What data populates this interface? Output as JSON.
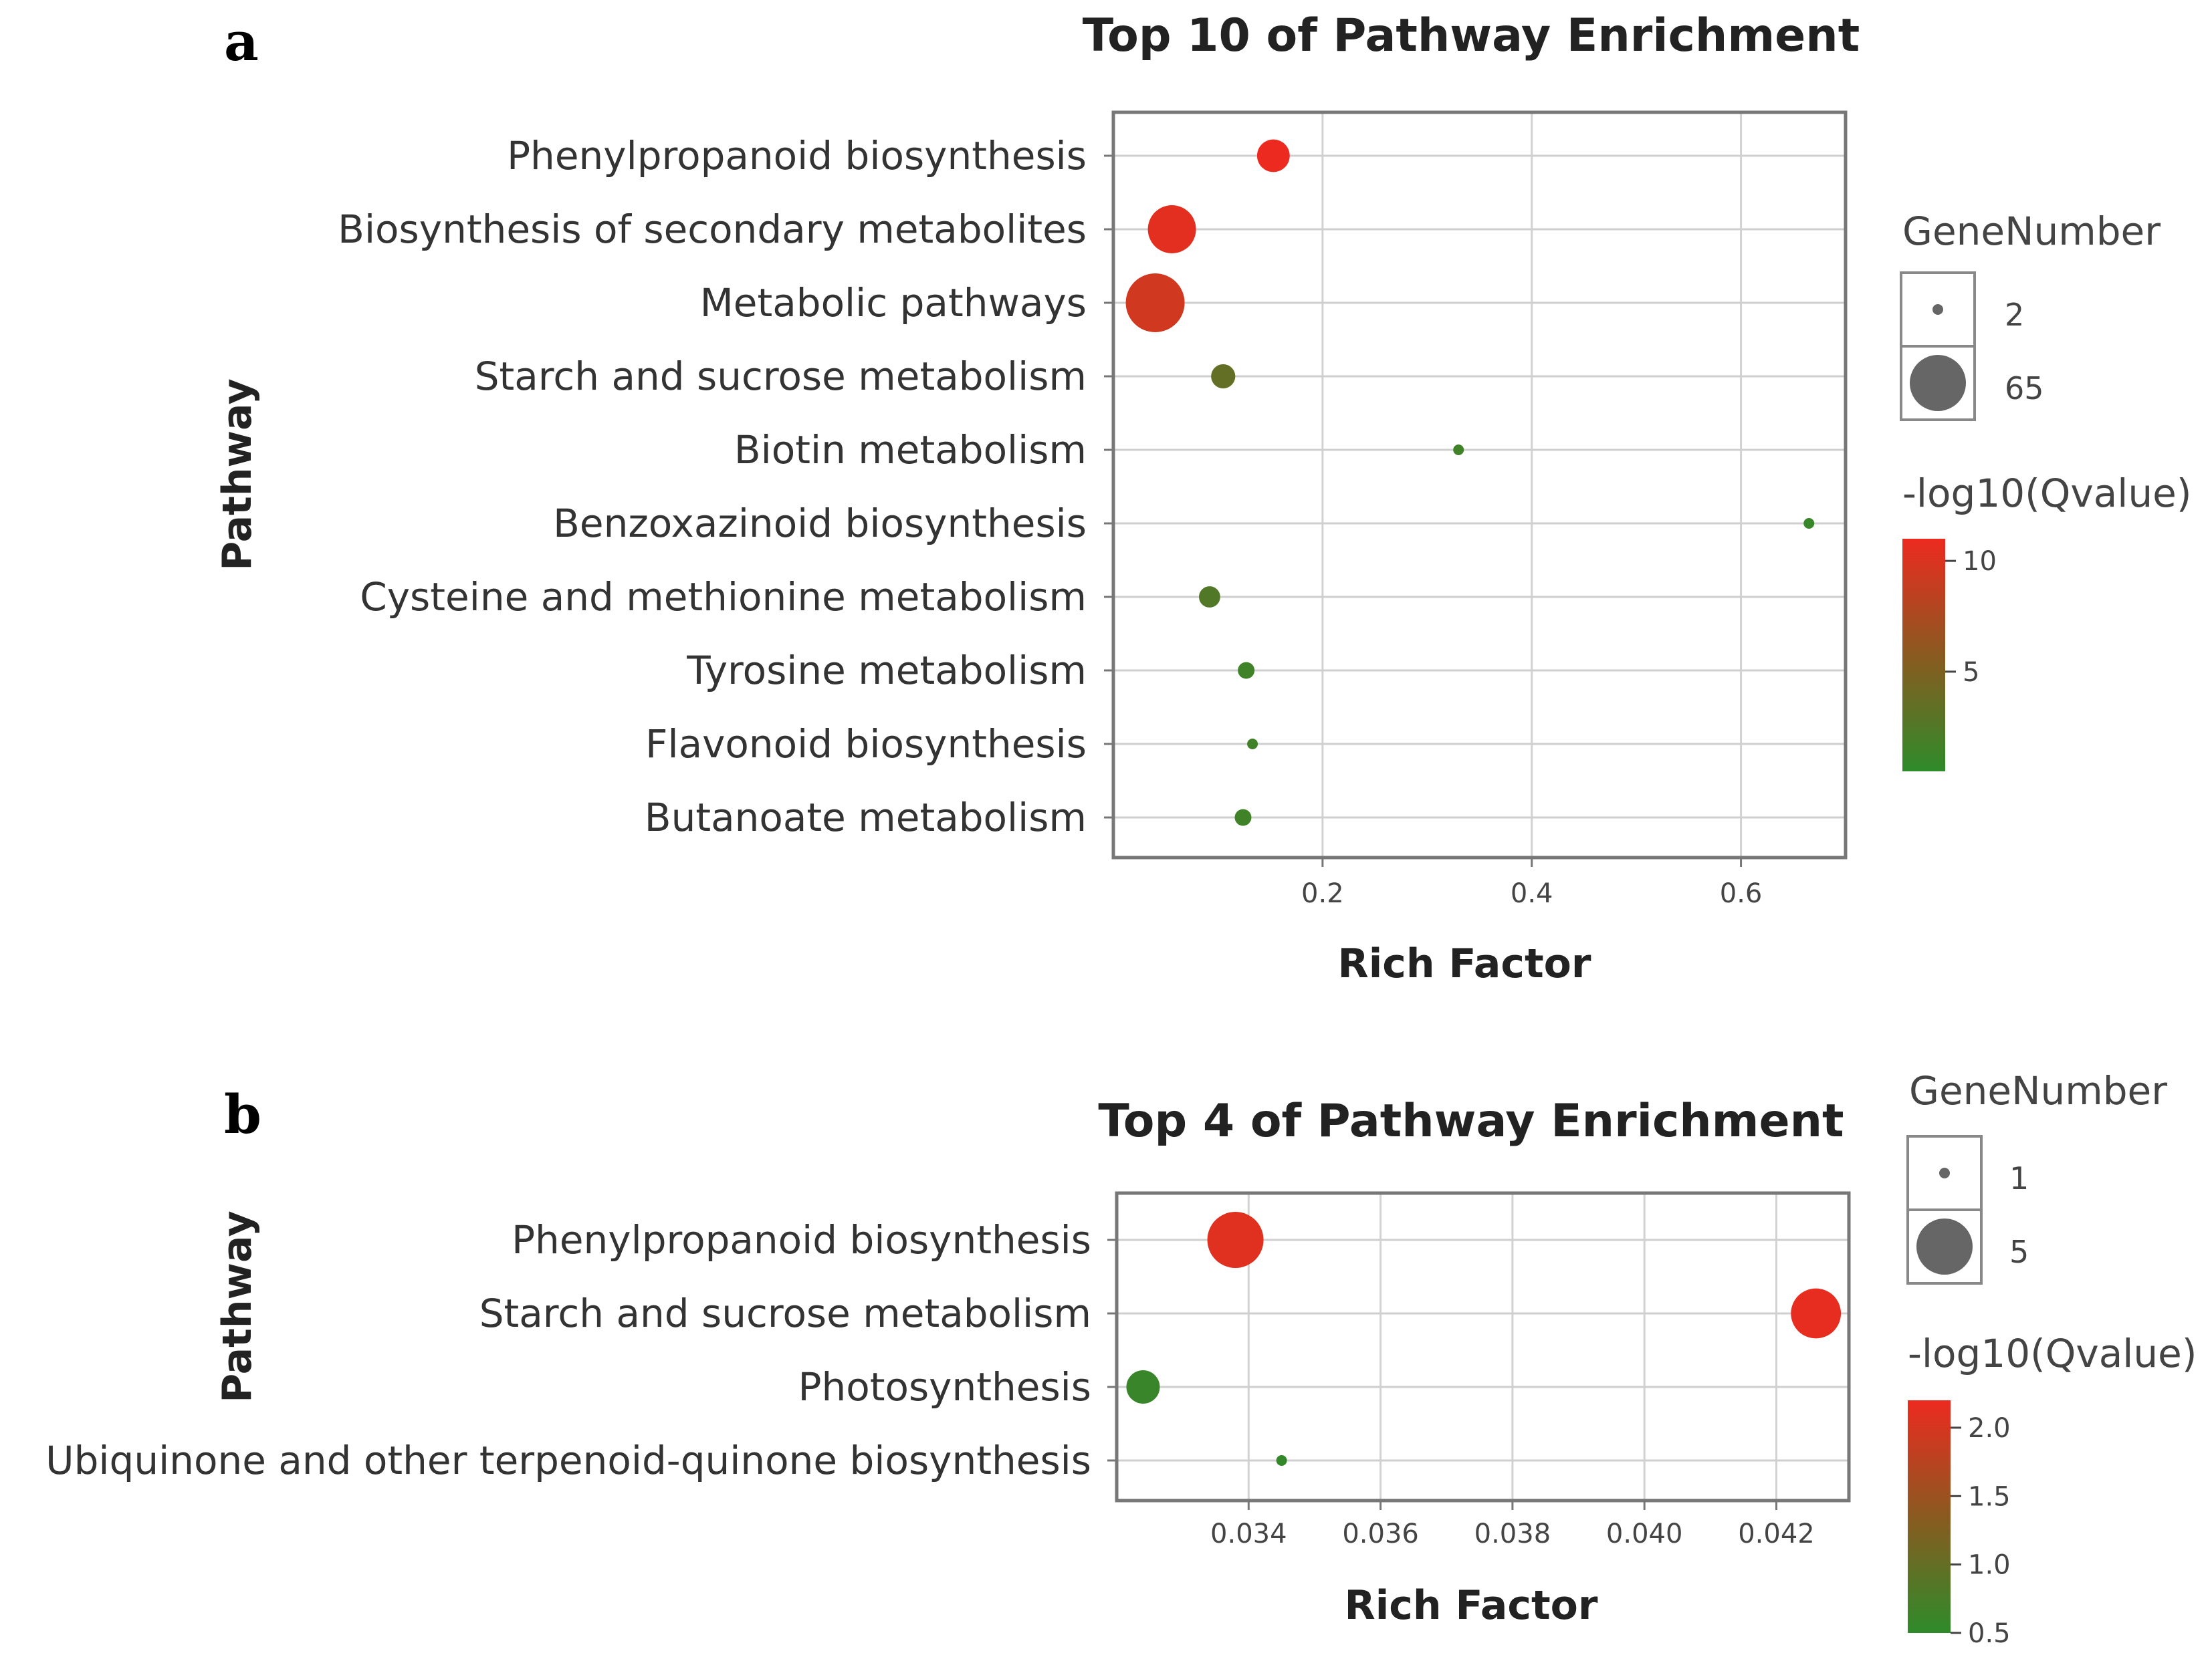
{
  "chart_data": [
    {
      "panel": "a",
      "type": "scatter",
      "title": "Top 10 of Pathway Enrichment",
      "xlabel": "Rich Factor",
      "ylabel": "Pathway",
      "xlim": [
        0.0,
        0.7
      ],
      "xticks": [
        0.2,
        0.4,
        0.6
      ],
      "xtick_labels": [
        "0.2",
        "0.4",
        "0.6"
      ],
      "categories": [
        "Phenylpropanoid biosynthesis",
        "Biosynthesis of secondary metabolites",
        "Metabolic pathways",
        "Starch and sucrose metabolism",
        "Biotin metabolism",
        "Benzoxazinoid biosynthesis",
        "Cysteine and methionine metabolism",
        "Tyrosine metabolism",
        "Flavonoid biosynthesis",
        "Butanoate metabolism"
      ],
      "rich_factor": [
        0.153,
        0.056,
        0.04,
        0.105,
        0.33,
        0.665,
        0.092,
        0.127,
        0.133,
        0.124
      ],
      "gene_number": [
        15,
        40,
        65,
        7,
        2,
        2,
        5,
        3,
        2,
        3
      ],
      "neg_log10_qvalue": [
        11.0,
        10.5,
        9.5,
        3.5,
        1.5,
        1.0,
        2.5,
        1.5,
        1.5,
        1.5
      ],
      "size_legend": {
        "title": "GeneNumber",
        "values": [
          2,
          65
        ],
        "labels": [
          "2",
          "65"
        ]
      },
      "color_legend": {
        "title": "-log10(Qvalue)",
        "range": [
          0.5,
          11.0
        ],
        "ticks": [
          10,
          5
        ],
        "tick_labels": [
          "10",
          "5"
        ],
        "low_color": "#2e8b2a",
        "high_color": "#ec2a1f"
      },
      "grid": true
    },
    {
      "panel": "b",
      "type": "scatter",
      "title": "Top 4 of Pathway Enrichment",
      "xlabel": "Rich Factor",
      "ylabel": "Pathway",
      "xlim": [
        0.032,
        0.0431
      ],
      "xticks": [
        0.034,
        0.036,
        0.038,
        0.04,
        0.042
      ],
      "xtick_labels": [
        "0.034",
        "0.036",
        "0.038",
        "0.040",
        "0.042"
      ],
      "categories": [
        "Phenylpropanoid biosynthesis",
        "Starch and sucrose metabolism",
        "Photosynthesis",
        "Ubiquinone and other terpenoid-quinone biosynthesis"
      ],
      "rich_factor": [
        0.0338,
        0.0426,
        0.0324,
        0.0345
      ],
      "gene_number": [
        5,
        4,
        2,
        1
      ],
      "neg_log10_qvalue": [
        2.1,
        2.15,
        0.6,
        0.55
      ],
      "size_legend": {
        "title": "GeneNumber",
        "values": [
          1,
          5
        ],
        "labels": [
          "1",
          "5"
        ]
      },
      "color_legend": {
        "title": "-log10(Qvalue)",
        "range": [
          0.5,
          2.2
        ],
        "ticks": [
          2.0,
          1.5,
          1.0,
          0.5
        ],
        "tick_labels": [
          "2.0",
          "1.5",
          "1.0",
          "0.5"
        ],
        "low_color": "#2e8b2a",
        "high_color": "#ec2a1f"
      },
      "grid": true
    }
  ]
}
